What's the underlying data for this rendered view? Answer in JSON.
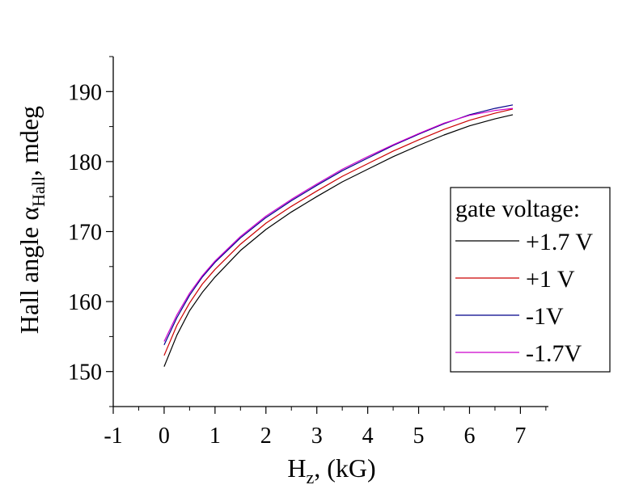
{
  "chart_data": {
    "type": "line",
    "xlabel": {
      "main": "H",
      "sub": "z",
      "rest": ", (kG)"
    },
    "ylabel": {
      "pre": "Hall angle ",
      "greek": "α",
      "sub": "Hall",
      "rest": ", mdeg"
    },
    "xlim": [
      -1,
      7.55
    ],
    "ylim": [
      145,
      195
    ],
    "xticks": [
      -1,
      0,
      1,
      2,
      3,
      4,
      5,
      6,
      7
    ],
    "xtick_labels": [
      "-1",
      "0",
      "1",
      "2",
      "3",
      "4",
      "5",
      "6",
      "7"
    ],
    "yticks": [
      150,
      160,
      170,
      180,
      190
    ],
    "ytick_labels": [
      "150",
      "160",
      "170",
      "180",
      "190"
    ],
    "grid": false,
    "legend": {
      "title": "gate voltage:",
      "placement": "right"
    },
    "x": [
      0,
      0.25,
      0.5,
      0.75,
      1,
      1.5,
      2,
      2.5,
      3,
      3.5,
      4,
      4.5,
      5,
      5.5,
      6,
      6.5,
      6.85
    ],
    "series": [
      {
        "name": "+1.7 V",
        "color": "#000000",
        "values": [
          150.7,
          155.2,
          158.7,
          161.3,
          163.5,
          167.3,
          170.3,
          172.8,
          175.0,
          177.1,
          178.9,
          180.7,
          182.3,
          183.8,
          185.1,
          186.1,
          186.7
        ]
      },
      {
        "name": "+1 V",
        "color": "#cc0000",
        "values": [
          152.3,
          156.6,
          159.8,
          162.5,
          164.6,
          168.2,
          171.2,
          173.6,
          175.8,
          177.9,
          179.7,
          181.5,
          183.1,
          184.6,
          185.9,
          186.9,
          187.5
        ]
      },
      {
        "name": "-1V",
        "color": "#00008b",
        "values": [
          153.8,
          157.7,
          160.9,
          163.5,
          165.6,
          169.1,
          172.0,
          174.4,
          176.6,
          178.7,
          180.5,
          182.3,
          183.9,
          185.4,
          186.7,
          187.6,
          188.1
        ]
      },
      {
        "name": "-1.7V",
        "color": "#cc00cc",
        "values": [
          154.3,
          158.1,
          161.2,
          163.7,
          165.8,
          169.3,
          172.2,
          174.6,
          176.8,
          178.9,
          180.7,
          182.4,
          184.0,
          185.5,
          186.6,
          187.3,
          187.6
        ]
      }
    ]
  }
}
